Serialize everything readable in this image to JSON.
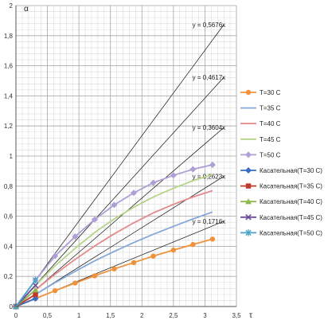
{
  "chart_data": {
    "type": "line",
    "title": "",
    "xlabel": "τ",
    "ylabel": "α",
    "xlim": [
      0,
      3.5
    ],
    "ylim": [
      0,
      2
    ],
    "x_ticks": [
      "0",
      "0,5",
      "1",
      "1,5",
      "2",
      "2,5",
      "3",
      "3,5"
    ],
    "y_ticks": [
      "0",
      "0,2",
      "0,4",
      "0,6",
      "0,8",
      "1",
      "1,2",
      "1,4",
      "1,6",
      "1,8",
      "2"
    ],
    "grid": true,
    "legend_position": "right",
    "tangent_lines": [
      {
        "label": "y = 0,5676x",
        "slope": 0.5676,
        "x_end": 3.3
      },
      {
        "label": "y = 0,4617x",
        "slope": 0.4617,
        "x_end": 3.3
      },
      {
        "label": "y = 0,3604x",
        "slope": 0.3604,
        "x_end": 3.3
      },
      {
        "label": "y = 0,2623x",
        "slope": 0.2623,
        "x_end": 3.3
      },
      {
        "label": "y = 0,1716x",
        "slope": 0.1716,
        "x_end": 3.3
      }
    ],
    "series": [
      {
        "name": "T=30 C",
        "color": "#f0923a",
        "marker": "circle",
        "x": [
          0,
          0.31,
          0.62,
          0.94,
          1.25,
          1.56,
          1.87,
          2.18,
          2.5,
          2.81,
          3.12
        ],
        "y": [
          0,
          0.053,
          0.105,
          0.156,
          0.204,
          0.25,
          0.292,
          0.335,
          0.375,
          0.412,
          0.448
        ]
      },
      {
        "name": "T=35 C",
        "color": "#84a9d9",
        "marker": "none",
        "x": [
          0,
          0.31,
          0.62,
          0.94,
          1.25,
          1.56,
          1.87,
          2.18,
          2.5,
          2.81,
          3.12
        ],
        "y": [
          0,
          0.08,
          0.158,
          0.234,
          0.303,
          0.366,
          0.425,
          0.48,
          0.533,
          0.582,
          0.628
        ]
      },
      {
        "name": "T=40 C",
        "color": "#e58a8a",
        "marker": "none",
        "x": [
          0,
          0.31,
          0.62,
          0.94,
          1.25,
          1.56,
          1.87,
          2.18,
          2.5,
          2.81,
          3.12
        ],
        "y": [
          0,
          0.11,
          0.215,
          0.313,
          0.402,
          0.483,
          0.556,
          0.622,
          0.679,
          0.728,
          0.77
        ]
      },
      {
        "name": "T=45 C",
        "color": "#b5d48a",
        "marker": "none",
        "x": [
          0,
          0.31,
          0.62,
          0.94,
          1.25,
          1.56,
          1.87,
          2.18,
          2.5,
          2.81,
          3.12
        ],
        "y": [
          0,
          0.14,
          0.27,
          0.387,
          0.492,
          0.582,
          0.66,
          0.728,
          0.786,
          0.836,
          0.878
        ]
      },
      {
        "name": "T=50 C",
        "color": "#ae9fd6",
        "marker": "diamond",
        "x": [
          0,
          0.31,
          0.62,
          0.94,
          1.25,
          1.56,
          1.87,
          2.18,
          2.5,
          2.81,
          3.12
        ],
        "y": [
          0,
          0.175,
          0.335,
          0.465,
          0.578,
          0.675,
          0.755,
          0.822,
          0.872,
          0.912,
          0.942
        ]
      },
      {
        "name": "Касательная(T=30 C)",
        "color": "#3a6dc4",
        "marker": "diamond",
        "x": [
          0,
          0.31
        ],
        "y": [
          0,
          0.053
        ]
      },
      {
        "name": "Касательная(T=35 C)",
        "color": "#c0392b",
        "marker": "square",
        "x": [
          0,
          0.31
        ],
        "y": [
          0,
          0.08
        ]
      },
      {
        "name": "Касательная(T=40 C)",
        "color": "#8fb84a",
        "marker": "triangle",
        "x": [
          0,
          0.31
        ],
        "y": [
          0,
          0.11
        ]
      },
      {
        "name": "Касательная(T=45 C)",
        "color": "#6a4c9c",
        "marker": "x",
        "x": [
          0,
          0.31
        ],
        "y": [
          0,
          0.14
        ]
      },
      {
        "name": "Касательная(T=50 C)",
        "color": "#4aa3c8",
        "marker": "star",
        "x": [
          0,
          0.31
        ],
        "y": [
          0,
          0.175
        ]
      }
    ]
  }
}
